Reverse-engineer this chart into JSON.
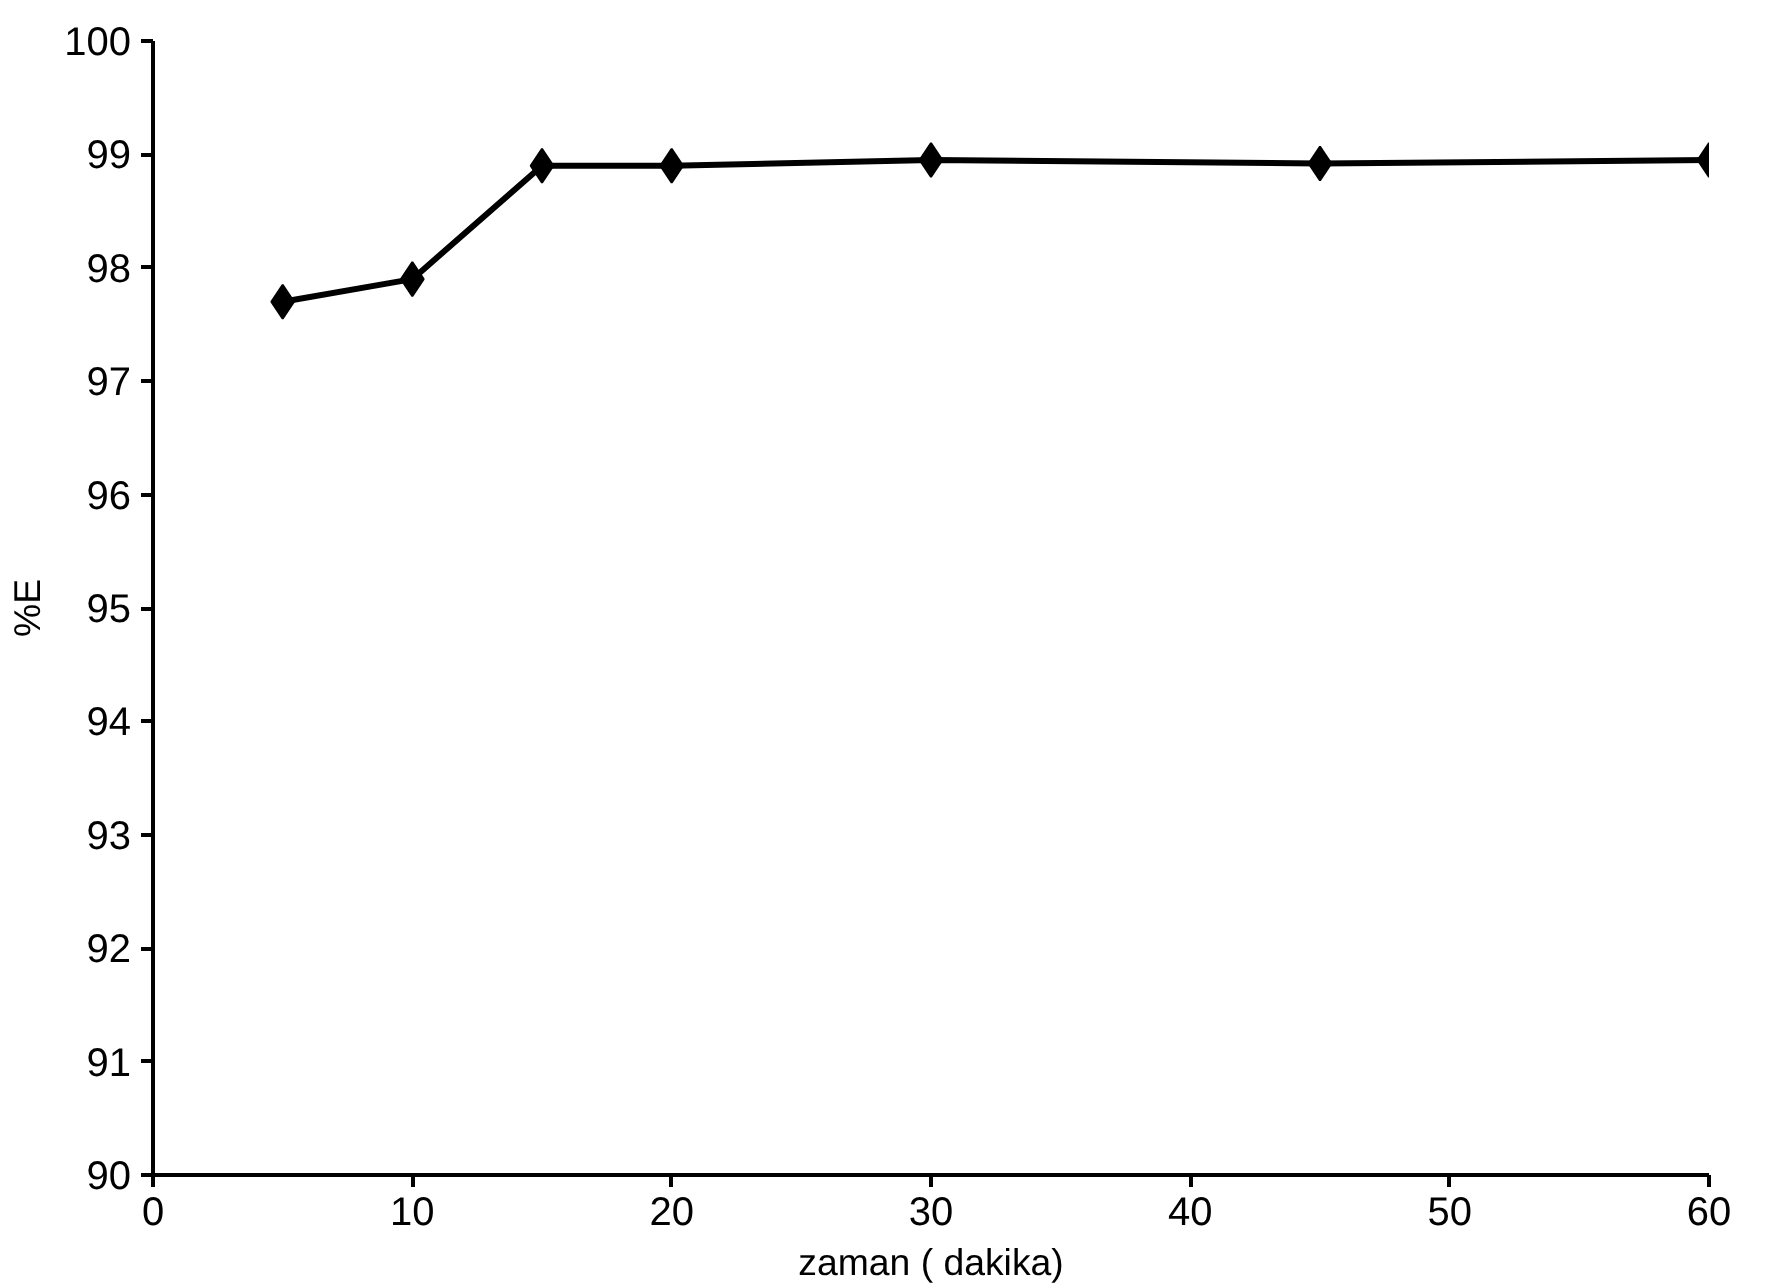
{
  "chart_data": {
    "type": "line",
    "xlabel": "zaman ( dakika)",
    "ylabel": "%E",
    "x": [
      5,
      10,
      15,
      20,
      30,
      45,
      60
    ],
    "series": [
      {
        "color": "#000000",
        "values": [
          97.7,
          97.9,
          98.9,
          98.9,
          98.95,
          98.92,
          98.95
        ]
      }
    ],
    "xlim": [
      0,
      60
    ],
    "xticks": [
      0,
      10,
      20,
      30,
      40,
      50,
      60
    ],
    "ylim": [
      90,
      100
    ],
    "yticks": [
      90,
      91,
      92,
      93,
      94,
      95,
      96,
      97,
      98,
      99,
      100
    ],
    "grid": false,
    "marker": "diamond",
    "line_style": "solid"
  }
}
